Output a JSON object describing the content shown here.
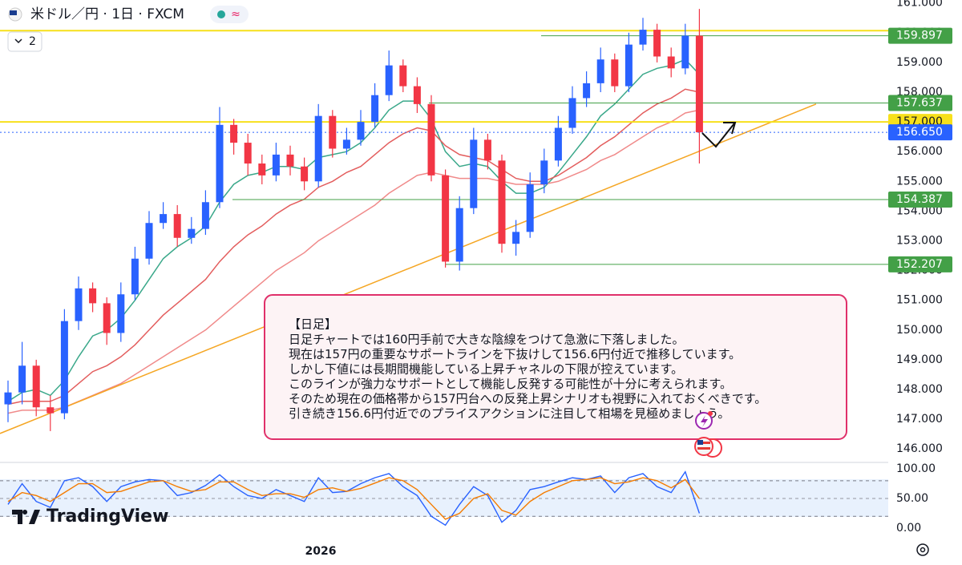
{
  "chart_data": {
    "type": "candlestick",
    "header": {
      "symbol": "米ドル／円 · 1日 · FXCM",
      "indicator_count": "2"
    },
    "ylim": [
      145.6,
      161.1
    ],
    "yticks": [
      {
        "value": 146,
        "label": "146.000"
      },
      {
        "value": 147,
        "label": "147.000"
      },
      {
        "value": 148,
        "label": "148.000"
      },
      {
        "value": 149,
        "label": "149.000"
      },
      {
        "value": 150,
        "label": "150.000"
      },
      {
        "value": 151,
        "label": "151.000"
      },
      {
        "value": 152,
        "label": "152.000"
      },
      {
        "value": 153,
        "label": "153.000"
      },
      {
        "value": 154,
        "label": "154.000"
      },
      {
        "value": 155,
        "label": "155.000"
      },
      {
        "value": 156,
        "label": "156.000"
      },
      {
        "value": 157,
        "label": "157.000"
      },
      {
        "value": 158,
        "label": "158.000"
      },
      {
        "value": 159,
        "label": "159.000"
      },
      {
        "value": 160,
        "label": "160.000"
      },
      {
        "value": 161,
        "label": "161.000"
      }
    ],
    "grid": false,
    "x_label": "2026",
    "up_color": "#2962ff",
    "down_color": "#f23645",
    "open": [
      147.5,
      147.9,
      148.8,
      147.4,
      147.2,
      150.3,
      151.4,
      150.9,
      149.9,
      151.2,
      152.4,
      153.6,
      153.9,
      153.1,
      153.4,
      154.3,
      156.9,
      156.3,
      155.6,
      155.2,
      155.9,
      155.5,
      155.0,
      157.2,
      156.1,
      156.4,
      157.0,
      157.9,
      158.9,
      158.2,
      157.6,
      155.2,
      152.3,
      154.1,
      156.4,
      155.7,
      152.9,
      153.3,
      154.9,
      155.7,
      156.8,
      157.8,
      158.3,
      159.1,
      158.2,
      159.6,
      160.1,
      159.2,
      158.8,
      159.9
    ],
    "high": [
      148.3,
      149.6,
      149.0,
      147.8,
      150.7,
      151.8,
      151.6,
      151.1,
      151.6,
      152.8,
      154.0,
      154.3,
      154.2,
      153.8,
      154.7,
      157.5,
      157.1,
      156.6,
      155.9,
      156.3,
      156.2,
      155.8,
      157.6,
      157.4,
      156.8,
      157.4,
      158.3,
      159.4,
      159.1,
      158.5,
      157.9,
      155.4,
      154.5,
      156.8,
      156.6,
      155.9,
      153.7,
      155.3,
      156.1,
      157.2,
      158.2,
      158.7,
      159.5,
      159.3,
      160.0,
      160.5,
      160.3,
      159.5,
      160.3,
      160.8
    ],
    "low": [
      146.9,
      147.5,
      147.1,
      146.6,
      147.0,
      150.0,
      150.6,
      149.5,
      149.6,
      151.0,
      152.2,
      153.4,
      152.8,
      152.9,
      153.2,
      154.1,
      155.9,
      155.2,
      154.9,
      155.0,
      155.2,
      154.7,
      154.8,
      155.8,
      155.9,
      156.2,
      156.8,
      157.7,
      158.0,
      157.3,
      155.0,
      152.1,
      152.0,
      153.9,
      155.4,
      152.6,
      152.5,
      153.1,
      154.6,
      155.5,
      156.6,
      157.5,
      158.0,
      158.0,
      158.0,
      159.4,
      159.0,
      158.5,
      158.6,
      155.6
    ],
    "close": [
      147.9,
      148.8,
      147.4,
      147.2,
      150.3,
      151.4,
      150.9,
      149.9,
      151.2,
      152.4,
      153.6,
      153.9,
      153.1,
      153.4,
      154.3,
      156.9,
      156.3,
      155.6,
      155.2,
      155.9,
      155.5,
      155.0,
      157.2,
      156.1,
      156.4,
      157.0,
      157.9,
      158.9,
      158.2,
      157.6,
      155.2,
      152.3,
      154.1,
      156.4,
      155.7,
      152.9,
      153.3,
      154.9,
      155.7,
      156.8,
      157.8,
      158.3,
      159.1,
      158.2,
      159.6,
      160.1,
      159.2,
      158.8,
      159.9,
      156.65
    ],
    "moving_averages": [
      {
        "color": "#3aa88a",
        "values": [
          147.6,
          147.9,
          148.0,
          147.8,
          148.3,
          149.1,
          149.8,
          150.0,
          150.4,
          151.0,
          151.7,
          152.4,
          152.8,
          153.1,
          153.5,
          154.3,
          154.9,
          155.2,
          155.3,
          155.5,
          155.5,
          155.4,
          155.8,
          155.9,
          156.0,
          156.3,
          156.8,
          157.4,
          157.7,
          157.7,
          157.1,
          156.0,
          155.5,
          155.6,
          155.5,
          155.0,
          154.6,
          154.6,
          154.8,
          155.3,
          155.9,
          156.5,
          157.2,
          157.6,
          158.1,
          158.6,
          158.8,
          158.9,
          159.1,
          158.6
        ]
      },
      {
        "color": "#e35d5d",
        "values": [
          147.5,
          147.6,
          147.6,
          147.6,
          147.8,
          148.2,
          148.6,
          148.8,
          149.1,
          149.5,
          150.0,
          150.5,
          150.9,
          151.3,
          151.7,
          152.3,
          152.8,
          153.2,
          153.5,
          153.9,
          154.2,
          154.4,
          154.8,
          155.0,
          155.3,
          155.5,
          155.9,
          156.3,
          156.6,
          156.8,
          156.7,
          156.2,
          155.9,
          155.8,
          155.7,
          155.4,
          155.1,
          155.0,
          155.0,
          155.2,
          155.5,
          155.8,
          156.2,
          156.5,
          156.9,
          157.3,
          157.6,
          157.8,
          158.1,
          158.0
        ]
      },
      {
        "color": "#f08a8a",
        "values": [
          147.2,
          147.3,
          147.3,
          147.3,
          147.4,
          147.6,
          147.8,
          148.0,
          148.2,
          148.5,
          148.8,
          149.1,
          149.4,
          149.7,
          150.0,
          150.4,
          150.8,
          151.2,
          151.6,
          152.0,
          152.3,
          152.6,
          153.0,
          153.3,
          153.6,
          153.9,
          154.2,
          154.6,
          154.9,
          155.2,
          155.3,
          155.2,
          155.1,
          155.1,
          155.1,
          155.0,
          154.9,
          154.9,
          154.9,
          155.0,
          155.2,
          155.4,
          155.7,
          155.9,
          156.2,
          156.5,
          156.8,
          157.0,
          157.3,
          157.4
        ]
      }
    ],
    "trendline": {
      "color": "#f5a623",
      "values": [
        146.52,
        157.6
      ]
    },
    "hlines": [
      {
        "value": 160.07,
        "color": "#f7e01b"
      }
    ],
    "price_tags": [
      {
        "value": 159.897,
        "color": "#43a047"
      },
      {
        "value": 157.637,
        "color": "#43a047"
      },
      {
        "value": 157,
        "label": "157.000",
        "color": "#f7e01b"
      },
      {
        "value": 156.65,
        "label": "156.650",
        "color": "#2962ff"
      },
      {
        "value": 154.387,
        "color": "#43a047"
      },
      {
        "value": 152.207,
        "color": "#43a047"
      }
    ],
    "annotation": {
      "title": "【日足】",
      "lines": [
        "日足チャートでは160円手前で大きな陰線をつけて急激に下落しました。",
        "現在は157円の重要なサポートラインを下抜けして156.6円付近で推移しています。",
        "しかし下値には長期間機能している上昇チャネルの下限が控えています。",
        "このラインが強力なサポートとして機能し反発する可能性が十分に考えられます。",
        "そのため現在の価格帯から157円台への反発上昇シナリオも視野に入れておくべきです。",
        "引き続き156.6円付近でのプライスアクションに注目して相場を見極めましょう。"
      ]
    },
    "rsi": {
      "ylim": [
        -21.6,
        109.5
      ],
      "yticks": [
        {
          "value": 100,
          "label": "100.00"
        },
        {
          "value": 50,
          "label": "50.00"
        },
        {
          "value": 0,
          "label": "0.00"
        }
      ],
      "bands": [
        20,
        80
      ],
      "series": [
        {
          "color": "#2962ff",
          "values": [
            40,
            75,
            45,
            35,
            80,
            85,
            70,
            45,
            70,
            78,
            82,
            80,
            55,
            60,
            72,
            90,
            70,
            55,
            50,
            65,
            55,
            45,
            85,
            60,
            62,
            75,
            85,
            92,
            70,
            55,
            20,
            5,
            40,
            70,
            55,
            10,
            30,
            65,
            70,
            78,
            85,
            82,
            88,
            60,
            85,
            92,
            70,
            60,
            95,
            25
          ]
        },
        {
          "color": "#f57c00",
          "values": [
            45,
            60,
            55,
            45,
            60,
            75,
            75,
            60,
            62,
            70,
            78,
            80,
            70,
            62,
            65,
            78,
            78,
            65,
            55,
            58,
            58,
            52,
            65,
            68,
            62,
            67,
            76,
            85,
            80,
            65,
            40,
            15,
            25,
            50,
            58,
            30,
            22,
            45,
            60,
            70,
            80,
            82,
            85,
            75,
            78,
            85,
            80,
            68,
            82,
            50
          ]
        }
      ]
    },
    "logo": "TradingView"
  }
}
